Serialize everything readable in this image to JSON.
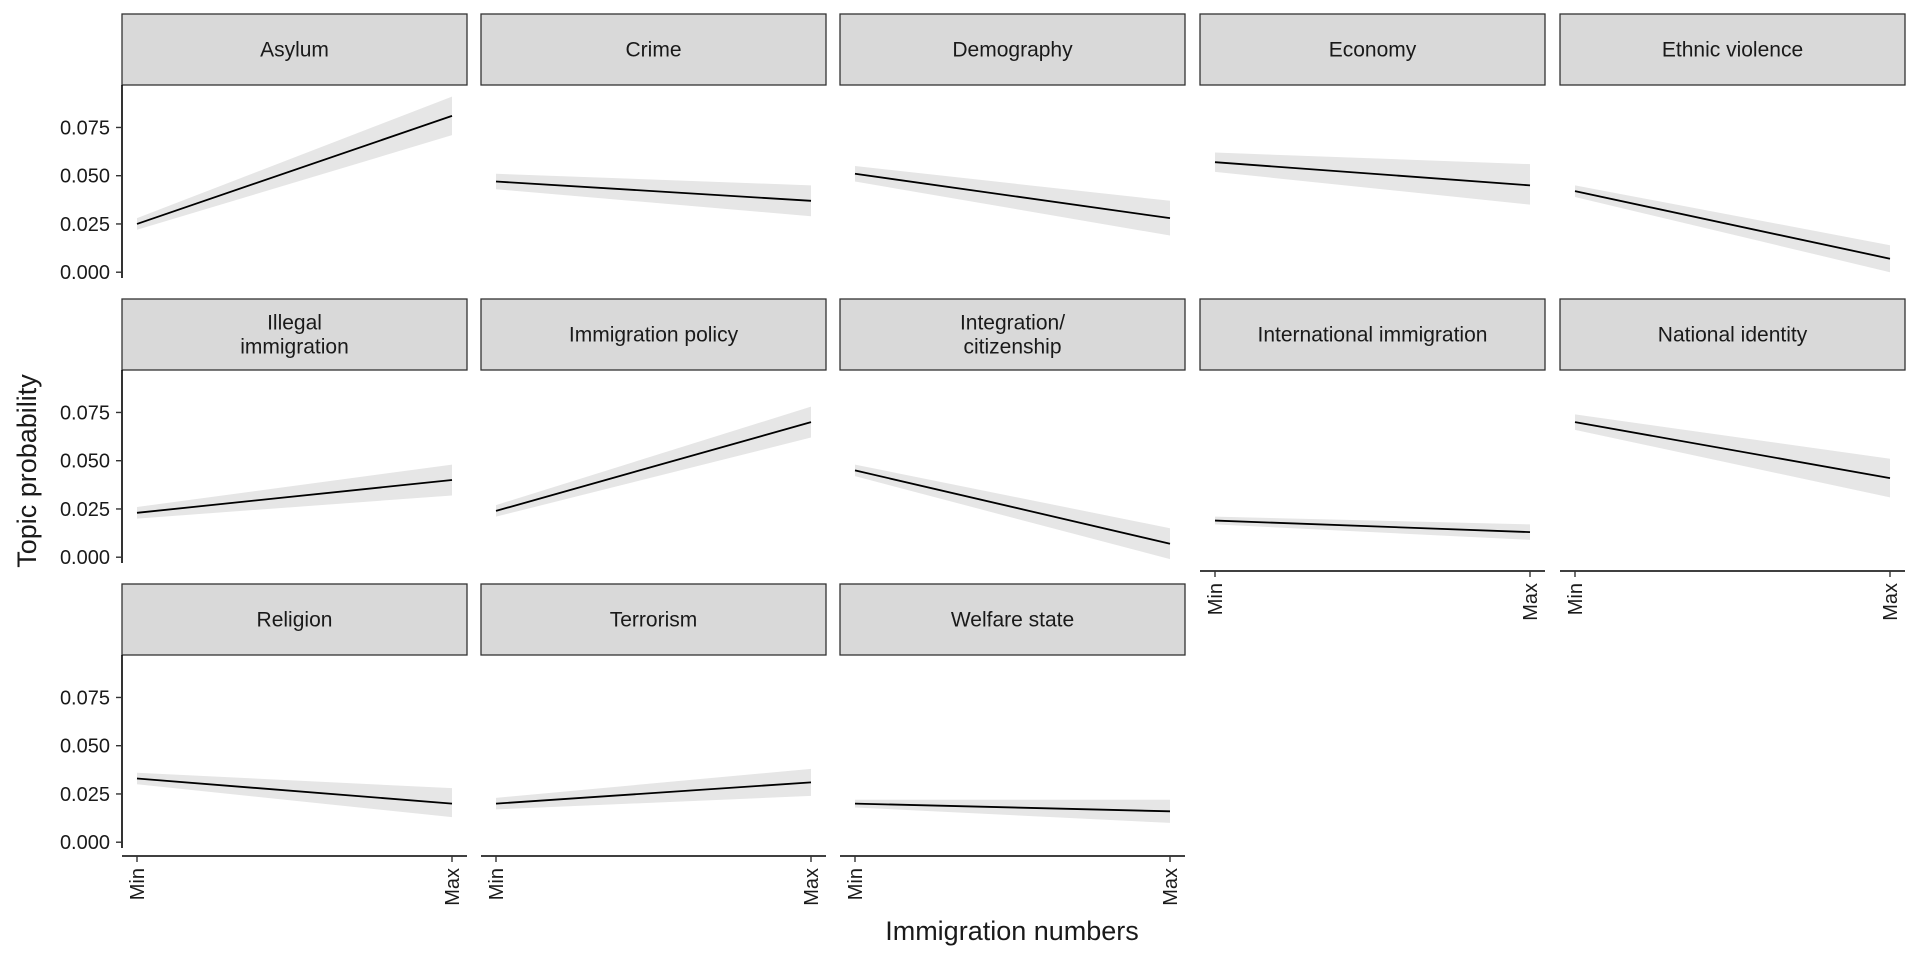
{
  "chart_data": {
    "type": "line",
    "layout": "faceted small multiples, 5 columns x 3 rows",
    "xlabel": "Immigration numbers",
    "ylabel": "Topic probability",
    "x_ticks": [
      "Min",
      "Max"
    ],
    "y_ticks": [
      "0.000",
      "0.025",
      "0.050",
      "0.075"
    ],
    "ylim": [
      -0.003,
      0.097
    ],
    "grid": false,
    "band": "95% confidence ribbon (grey)",
    "colors": {
      "line": "#000000",
      "band": "#e6e6e6",
      "strip": "#d9d9d9",
      "strip_border": "#333333"
    },
    "panels": [
      {
        "title": [
          "Asylum"
        ],
        "start": 0.025,
        "end": 0.081,
        "ci_start": [
          0.022,
          0.028
        ],
        "ci_end": [
          0.071,
          0.091
        ]
      },
      {
        "title": [
          "Crime"
        ],
        "start": 0.047,
        "end": 0.037,
        "ci_start": [
          0.043,
          0.051
        ],
        "ci_end": [
          0.029,
          0.045
        ]
      },
      {
        "title": [
          "Demography"
        ],
        "start": 0.051,
        "end": 0.028,
        "ci_start": [
          0.047,
          0.055
        ],
        "ci_end": [
          0.019,
          0.037
        ]
      },
      {
        "title": [
          "Economy"
        ],
        "start": 0.057,
        "end": 0.045,
        "ci_start": [
          0.052,
          0.062
        ],
        "ci_end": [
          0.035,
          0.056
        ]
      },
      {
        "title": [
          "Ethnic violence"
        ],
        "start": 0.042,
        "end": 0.007,
        "ci_start": [
          0.039,
          0.045
        ],
        "ci_end": [
          0.0,
          0.014
        ]
      },
      {
        "title": [
          "Illegal",
          "immigration"
        ],
        "start": 0.023,
        "end": 0.04,
        "ci_start": [
          0.02,
          0.026
        ],
        "ci_end": [
          0.032,
          0.048
        ]
      },
      {
        "title": [
          "Immigration policy"
        ],
        "start": 0.024,
        "end": 0.07,
        "ci_start": [
          0.021,
          0.027
        ],
        "ci_end": [
          0.062,
          0.078
        ]
      },
      {
        "title": [
          "Integration/",
          "citizenship"
        ],
        "start": 0.045,
        "end": 0.007,
        "ci_start": [
          0.042,
          0.048
        ],
        "ci_end": [
          -0.001,
          0.015
        ]
      },
      {
        "title": [
          "International immigration"
        ],
        "start": 0.019,
        "end": 0.013,
        "ci_start": [
          0.017,
          0.021
        ],
        "ci_end": [
          0.009,
          0.017
        ]
      },
      {
        "title": [
          "National identity"
        ],
        "start": 0.07,
        "end": 0.041,
        "ci_start": [
          0.066,
          0.074
        ],
        "ci_end": [
          0.031,
          0.051
        ]
      },
      {
        "title": [
          "Religion"
        ],
        "start": 0.033,
        "end": 0.02,
        "ci_start": [
          0.03,
          0.036
        ],
        "ci_end": [
          0.013,
          0.028
        ]
      },
      {
        "title": [
          "Terrorism"
        ],
        "start": 0.02,
        "end": 0.031,
        "ci_start": [
          0.017,
          0.023
        ],
        "ci_end": [
          0.024,
          0.038
        ]
      },
      {
        "title": [
          "Welfare state"
        ],
        "start": 0.02,
        "end": 0.016,
        "ci_start": [
          0.018,
          0.022
        ],
        "ci_end": [
          0.01,
          0.022
        ]
      }
    ]
  }
}
